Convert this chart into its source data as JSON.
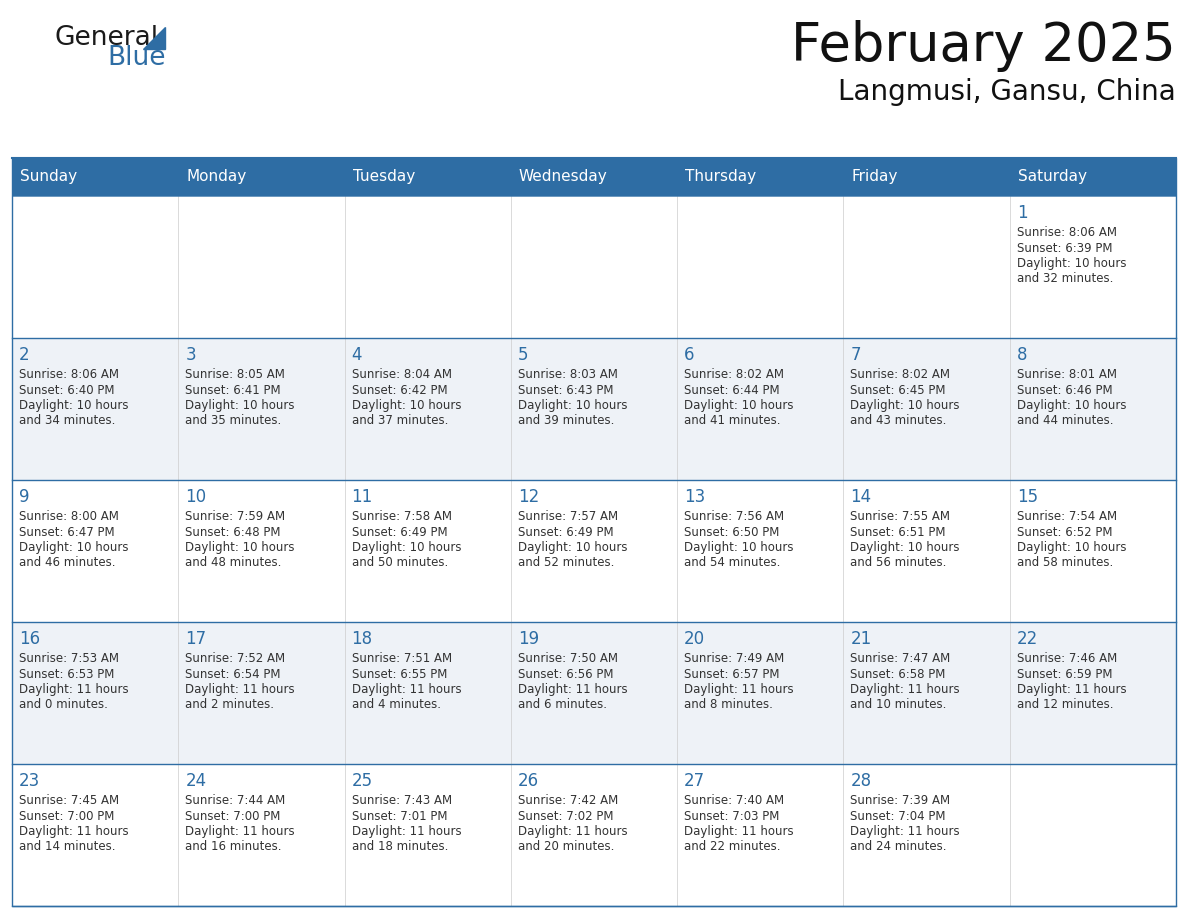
{
  "title": "February 2025",
  "subtitle": "Langmusi, Gansu, China",
  "header_bg": "#2E6DA4",
  "header_text_color": "#FFFFFF",
  "row_bg_even": "#FFFFFF",
  "row_bg_odd": "#EEF2F7",
  "border_color": "#2E6DA4",
  "text_color": "#333333",
  "day_num_color": "#2E6DA4",
  "day_headers": [
    "Sunday",
    "Monday",
    "Tuesday",
    "Wednesday",
    "Thursday",
    "Friday",
    "Saturday"
  ],
  "days": [
    {
      "day": 1,
      "col": 6,
      "row": 0,
      "sunrise": "8:06 AM",
      "sunset": "6:39 PM",
      "daylight_h": "10 hours",
      "daylight_m": "and 32 minutes."
    },
    {
      "day": 2,
      "col": 0,
      "row": 1,
      "sunrise": "8:06 AM",
      "sunset": "6:40 PM",
      "daylight_h": "10 hours",
      "daylight_m": "and 34 minutes."
    },
    {
      "day": 3,
      "col": 1,
      "row": 1,
      "sunrise": "8:05 AM",
      "sunset": "6:41 PM",
      "daylight_h": "10 hours",
      "daylight_m": "and 35 minutes."
    },
    {
      "day": 4,
      "col": 2,
      "row": 1,
      "sunrise": "8:04 AM",
      "sunset": "6:42 PM",
      "daylight_h": "10 hours",
      "daylight_m": "and 37 minutes."
    },
    {
      "day": 5,
      "col": 3,
      "row": 1,
      "sunrise": "8:03 AM",
      "sunset": "6:43 PM",
      "daylight_h": "10 hours",
      "daylight_m": "and 39 minutes."
    },
    {
      "day": 6,
      "col": 4,
      "row": 1,
      "sunrise": "8:02 AM",
      "sunset": "6:44 PM",
      "daylight_h": "10 hours",
      "daylight_m": "and 41 minutes."
    },
    {
      "day": 7,
      "col": 5,
      "row": 1,
      "sunrise": "8:02 AM",
      "sunset": "6:45 PM",
      "daylight_h": "10 hours",
      "daylight_m": "and 43 minutes."
    },
    {
      "day": 8,
      "col": 6,
      "row": 1,
      "sunrise": "8:01 AM",
      "sunset": "6:46 PM",
      "daylight_h": "10 hours",
      "daylight_m": "and 44 minutes."
    },
    {
      "day": 9,
      "col": 0,
      "row": 2,
      "sunrise": "8:00 AM",
      "sunset": "6:47 PM",
      "daylight_h": "10 hours",
      "daylight_m": "and 46 minutes."
    },
    {
      "day": 10,
      "col": 1,
      "row": 2,
      "sunrise": "7:59 AM",
      "sunset": "6:48 PM",
      "daylight_h": "10 hours",
      "daylight_m": "and 48 minutes."
    },
    {
      "day": 11,
      "col": 2,
      "row": 2,
      "sunrise": "7:58 AM",
      "sunset": "6:49 PM",
      "daylight_h": "10 hours",
      "daylight_m": "and 50 minutes."
    },
    {
      "day": 12,
      "col": 3,
      "row": 2,
      "sunrise": "7:57 AM",
      "sunset": "6:49 PM",
      "daylight_h": "10 hours",
      "daylight_m": "and 52 minutes."
    },
    {
      "day": 13,
      "col": 4,
      "row": 2,
      "sunrise": "7:56 AM",
      "sunset": "6:50 PM",
      "daylight_h": "10 hours",
      "daylight_m": "and 54 minutes."
    },
    {
      "day": 14,
      "col": 5,
      "row": 2,
      "sunrise": "7:55 AM",
      "sunset": "6:51 PM",
      "daylight_h": "10 hours",
      "daylight_m": "and 56 minutes."
    },
    {
      "day": 15,
      "col": 6,
      "row": 2,
      "sunrise": "7:54 AM",
      "sunset": "6:52 PM",
      "daylight_h": "10 hours",
      "daylight_m": "and 58 minutes."
    },
    {
      "day": 16,
      "col": 0,
      "row": 3,
      "sunrise": "7:53 AM",
      "sunset": "6:53 PM",
      "daylight_h": "11 hours",
      "daylight_m": "and 0 minutes."
    },
    {
      "day": 17,
      "col": 1,
      "row": 3,
      "sunrise": "7:52 AM",
      "sunset": "6:54 PM",
      "daylight_h": "11 hours",
      "daylight_m": "and 2 minutes."
    },
    {
      "day": 18,
      "col": 2,
      "row": 3,
      "sunrise": "7:51 AM",
      "sunset": "6:55 PM",
      "daylight_h": "11 hours",
      "daylight_m": "and 4 minutes."
    },
    {
      "day": 19,
      "col": 3,
      "row": 3,
      "sunrise": "7:50 AM",
      "sunset": "6:56 PM",
      "daylight_h": "11 hours",
      "daylight_m": "and 6 minutes."
    },
    {
      "day": 20,
      "col": 4,
      "row": 3,
      "sunrise": "7:49 AM",
      "sunset": "6:57 PM",
      "daylight_h": "11 hours",
      "daylight_m": "and 8 minutes."
    },
    {
      "day": 21,
      "col": 5,
      "row": 3,
      "sunrise": "7:47 AM",
      "sunset": "6:58 PM",
      "daylight_h": "11 hours",
      "daylight_m": "and 10 minutes."
    },
    {
      "day": 22,
      "col": 6,
      "row": 3,
      "sunrise": "7:46 AM",
      "sunset": "6:59 PM",
      "daylight_h": "11 hours",
      "daylight_m": "and 12 minutes."
    },
    {
      "day": 23,
      "col": 0,
      "row": 4,
      "sunrise": "7:45 AM",
      "sunset": "7:00 PM",
      "daylight_h": "11 hours",
      "daylight_m": "and 14 minutes."
    },
    {
      "day": 24,
      "col": 1,
      "row": 4,
      "sunrise": "7:44 AM",
      "sunset": "7:00 PM",
      "daylight_h": "11 hours",
      "daylight_m": "and 16 minutes."
    },
    {
      "day": 25,
      "col": 2,
      "row": 4,
      "sunrise": "7:43 AM",
      "sunset": "7:01 PM",
      "daylight_h": "11 hours",
      "daylight_m": "and 18 minutes."
    },
    {
      "day": 26,
      "col": 3,
      "row": 4,
      "sunrise": "7:42 AM",
      "sunset": "7:02 PM",
      "daylight_h": "11 hours",
      "daylight_m": "and 20 minutes."
    },
    {
      "day": 27,
      "col": 4,
      "row": 4,
      "sunrise": "7:40 AM",
      "sunset": "7:03 PM",
      "daylight_h": "11 hours",
      "daylight_m": "and 22 minutes."
    },
    {
      "day": 28,
      "col": 5,
      "row": 4,
      "sunrise": "7:39 AM",
      "sunset": "7:04 PM",
      "daylight_h": "11 hours",
      "daylight_m": "and 24 minutes."
    }
  ]
}
